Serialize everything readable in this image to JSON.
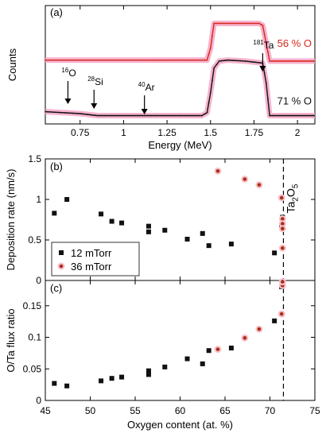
{
  "chart_data": [
    {
      "panel": "(a)",
      "type": "line",
      "xlabel": "Energy (MeV)",
      "ylabel": "Counts",
      "xlim": [
        0.55,
        2.1
      ],
      "xticks": [
        "0.75",
        "1",
        "1.25",
        "1.5",
        "1.75",
        "2"
      ],
      "series": [
        {
          "name": "56 % O",
          "color": "#d9271c",
          "simulation_color": "#f4a6c6",
          "offset": 0.55,
          "x": [
            0.55,
            1.48,
            1.5,
            1.52,
            1.6,
            1.7,
            1.78,
            1.8,
            1.82,
            1.84,
            2.1
          ],
          "y": [
            0.03,
            0.03,
            0.15,
            0.4,
            0.4,
            0.4,
            0.4,
            0.38,
            0.2,
            0.02,
            0.02
          ]
        },
        {
          "name": "71 % O",
          "color": "#111111",
          "simulation_color": "#f4a6c6",
          "offset": 0.0,
          "x": [
            0.55,
            0.65,
            0.75,
            0.85,
            1.0,
            1.2,
            1.45,
            1.48,
            1.5,
            1.52,
            1.55,
            1.6,
            1.7,
            1.8,
            1.82,
            1.84,
            2.1
          ],
          "y": [
            0.06,
            0.05,
            0.04,
            0.02,
            0.02,
            0.02,
            0.02,
            0.05,
            0.25,
            0.5,
            0.57,
            0.58,
            0.57,
            0.55,
            0.35,
            0.02,
            0.02
          ]
        }
      ],
      "annotations": [
        {
          "sup": "16",
          "text": "O",
          "x": 0.68
        },
        {
          "sup": "28",
          "text": "Si",
          "x": 0.83
        },
        {
          "sup": "40",
          "text": "Ar",
          "x": 1.12
        },
        {
          "sup": "181",
          "text": "Ta",
          "x": 1.8
        }
      ]
    },
    {
      "panel": "(b)",
      "type": "scatter",
      "xlabel": "",
      "ylabel": "Deposition rate (nm/s)",
      "xlim": [
        45,
        75
      ],
      "ylim": [
        0,
        1.5
      ],
      "yticks": [
        "0",
        "0.5",
        "1",
        "1.5"
      ],
      "vline_x": 71.5,
      "vline_label": {
        "main": "Ta",
        "sub1": "2",
        "main2": "O",
        "sub2": "5"
      },
      "series": [
        {
          "name": "12 mTorr",
          "marker": "square",
          "color": "#111111",
          "x": [
            46,
            47.4,
            51.2,
            52.4,
            53.5,
            56.5,
            56.5,
            58.3,
            60.8,
            62.5,
            63.2,
            65.7,
            70.5,
            71.3,
            71.4,
            71.4
          ],
          "y": [
            0.83,
            1.0,
            0.82,
            0.73,
            0.71,
            0.67,
            0.6,
            0.62,
            0.51,
            0.58,
            0.43,
            0.45,
            0.34,
            0.68,
            0.72,
            0.78
          ]
        },
        {
          "name": "36 mTorr",
          "marker": "circle",
          "color": "#a7301c",
          "x": [
            64.2,
            67.2,
            68.8,
            71.3,
            71.4,
            71.4,
            71.4,
            71.4
          ],
          "y": [
            1.35,
            1.25,
            1.18,
            1.02,
            0.76,
            0.7,
            0.64,
            0.4
          ]
        }
      ],
      "legend": "bottom-left"
    },
    {
      "panel": "(c)",
      "type": "scatter",
      "xlabel": "Oxygen content (at. %)",
      "ylabel": "O/Ta flux ratio",
      "xlim": [
        45,
        75
      ],
      "ylim": [
        0,
        0.19
      ],
      "xticks": [
        "45",
        "50",
        "55",
        "60",
        "65",
        "70",
        "75"
      ],
      "yticks": [
        "0",
        "0.05",
        "0.1",
        "0.15"
      ],
      "vline_x": 71.5,
      "series": [
        {
          "name": "12 mTorr",
          "marker": "square",
          "color": "#111111",
          "x": [
            46,
            47.4,
            51.2,
            52.4,
            53.5,
            56.5,
            56.5,
            58.3,
            60.8,
            62.5,
            63.2,
            65.7,
            70.5,
            71.3,
            71.4
          ],
          "y": [
            0.027,
            0.023,
            0.031,
            0.035,
            0.037,
            0.041,
            0.047,
            0.053,
            0.066,
            0.058,
            0.079,
            0.083,
            0.126,
            0.18,
            0.185
          ]
        },
        {
          "name": "36 mTorr",
          "marker": "circle",
          "color": "#a7301c",
          "x": [
            64.2,
            67.2,
            68.8,
            71.3,
            71.4,
            71.4
          ],
          "y": [
            0.081,
            0.099,
            0.113,
            0.137,
            0.182,
            0.188
          ]
        }
      ]
    }
  ]
}
